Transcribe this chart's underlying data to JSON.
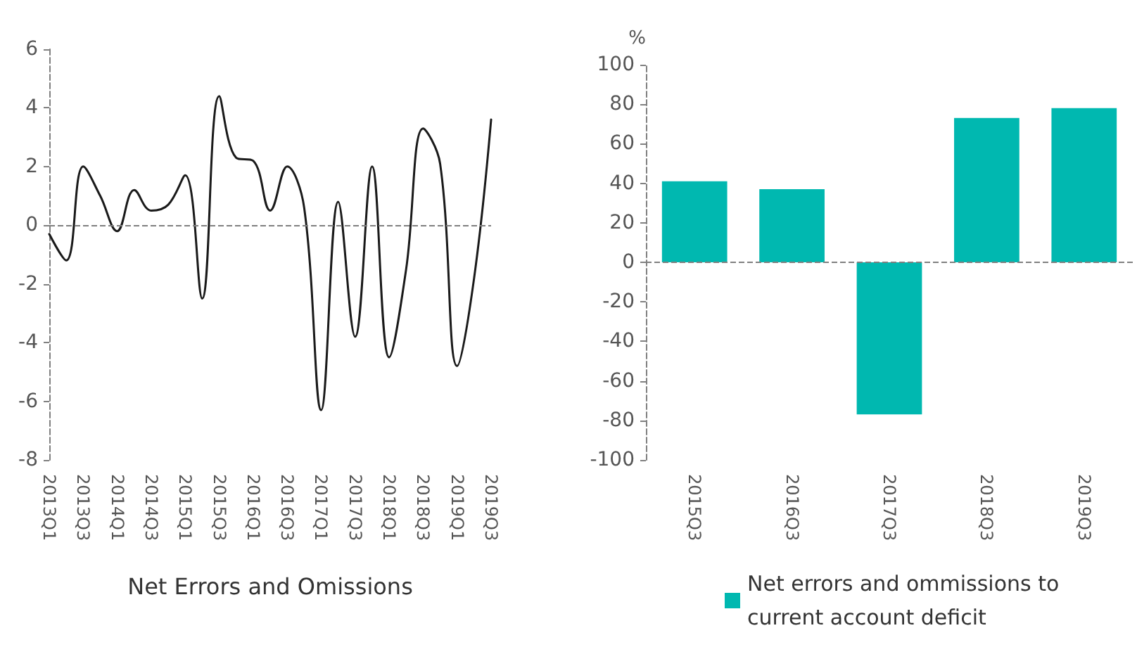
{
  "chart_data": [
    {
      "type": "line",
      "xlabel": "Net Errors and Omissions",
      "categories": [
        "2013Q1",
        null,
        "2013Q3",
        null,
        "2014Q1",
        null,
        "2014Q3",
        null,
        "2015Q1",
        null,
        "2015Q3",
        null,
        "2016Q1",
        null,
        "2016Q3",
        null,
        "2017Q1",
        null,
        "2017Q3",
        null,
        "2018Q1",
        null,
        "2018Q3",
        null,
        "2019Q1",
        null,
        "2019Q3"
      ],
      "series": [
        {
          "color": "#1a1a1a",
          "values": [
            -0.3,
            -1.2,
            2.0,
            1.0,
            -0.2,
            1.2,
            0.5,
            0.7,
            1.7,
            -2.5,
            4.4,
            2.3,
            2.2,
            0.5,
            2.0,
            0.6,
            -6.3,
            0.8,
            -3.8,
            2.0,
            -4.5,
            -1.5,
            3.3,
            2.1,
            -4.8,
            -1.8,
            3.6
          ]
        }
      ],
      "ylim": [
        -8,
        6
      ],
      "yticks": [
        -8,
        -6,
        -4,
        -2,
        0,
        2,
        4,
        6
      ],
      "ref_lines": [
        {
          "axis": "y",
          "value": 0,
          "color": "#808080",
          "line_style": "dashed"
        }
      ],
      "grid": false,
      "legend": false,
      "marker": "none",
      "line_style": "solid"
    },
    {
      "type": "bar",
      "ylabel": "%",
      "categories": [
        "2015Q3",
        "2016Q3",
        "2017Q3",
        "2018Q3",
        "2019Q3"
      ],
      "series": [
        {
          "name": "Net errors and ommissions to current account deficit",
          "color": "#00b8b0",
          "values": [
            41,
            37,
            -77,
            73,
            78
          ]
        }
      ],
      "ylim": [
        -100,
        100
      ],
      "yticks": [
        -100,
        -80,
        -60,
        -40,
        -20,
        0,
        20,
        40,
        60,
        80,
        100
      ],
      "ref_lines": [
        {
          "axis": "y",
          "value": 0,
          "color": "#808080",
          "line_style": "dashed"
        }
      ],
      "grid": false,
      "legend": "bottom"
    }
  ]
}
